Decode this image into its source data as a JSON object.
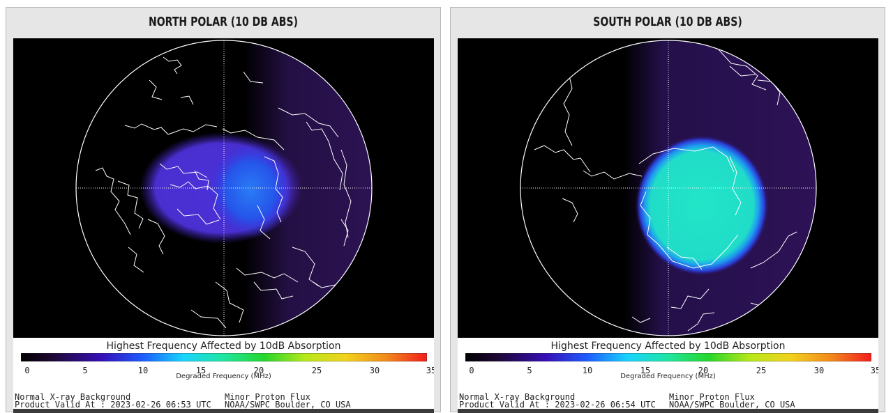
{
  "panels": [
    {
      "id": "north",
      "title": "NORTH POLAR (10 DB ABS)",
      "colorbar_title": "Highest Frequency Affected by 10dB Absorption",
      "colorbar_xlabel": "Degraded Frequency (MHz)",
      "ticks": [
        "0",
        "5",
        "10",
        "15",
        "20",
        "25",
        "30",
        "35"
      ],
      "footer_left_1": "Normal X-ray Background",
      "footer_left_2": "Product Valid At : 2023-02-26 06:53 UTC",
      "footer_right_1": "Minor Proton Flux",
      "footer_right_2": "NOAA/SWPC Boulder, CO USA"
    },
    {
      "id": "south",
      "title": "SOUTH POLAR (10 DB ABS)",
      "colorbar_title": "Highest Frequency Affected by 10dB Absorption",
      "colorbar_xlabel": "Degraded Frequency (MHz)",
      "ticks": [
        "0",
        "5",
        "10",
        "15",
        "20",
        "25",
        "30",
        "35"
      ],
      "footer_left_1": "Normal X-ray Background",
      "footer_left_2": "Product Valid At : 2023-02-26 06:54 UTC",
      "footer_right_1": "Minor Proton Flux",
      "footer_right_2": "NOAA/SWPC Boulder, CO USA"
    }
  ],
  "colors": {
    "map_background": "#000000",
    "night_side": "#230d40",
    "north_absorption": "#4a2fd6",
    "north_peak": "#1f66ee",
    "south_absorption": "#20e3c8",
    "south_edge": "#2a55e8"
  },
  "colorbar_stops": [
    "#000000",
    "#2a0a55",
    "#3b10c8",
    "#1e5cff",
    "#18d4ff",
    "#1ee6a0",
    "#27d62b",
    "#b6e81a",
    "#f2d21c",
    "#f28a1c",
    "#f21c1c"
  ]
}
